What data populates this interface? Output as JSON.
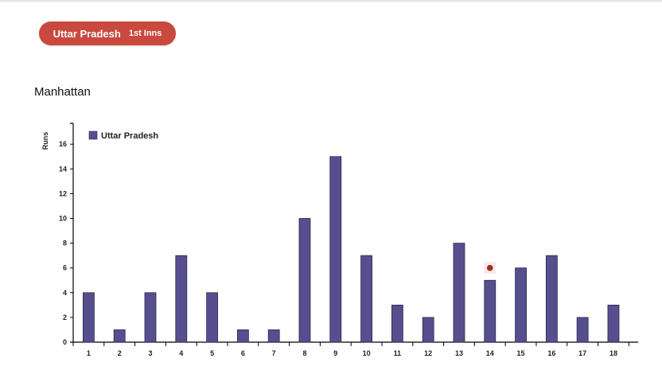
{
  "header": {
    "team": "Uttar Pradesh",
    "innings": "1st Inns",
    "pill_color": "#c9493f"
  },
  "section": {
    "title": "Manhattan"
  },
  "chart_data": {
    "type": "bar",
    "title": "Manhattan",
    "xlabel": "",
    "ylabel": "Runs",
    "categories": [
      "1",
      "2",
      "3",
      "4",
      "5",
      "6",
      "7",
      "8",
      "9",
      "10",
      "11",
      "12",
      "13",
      "14",
      "15",
      "16",
      "17",
      "18"
    ],
    "series": [
      {
        "name": "Uttar Pradesh",
        "color": "#574f8d",
        "values": [
          4,
          1,
          4,
          7,
          4,
          1,
          1,
          10,
          15,
          7,
          3,
          2,
          8,
          5,
          6,
          7,
          2,
          3
        ]
      }
    ],
    "wickets": [
      {
        "over": "14",
        "y": 6,
        "color": "#8b3a0f"
      }
    ],
    "yticks": [
      0,
      2,
      4,
      6,
      8,
      10,
      12,
      14,
      16
    ],
    "ylim": [
      0,
      17.5
    ],
    "grid": false,
    "legend_position": "top-left"
  }
}
